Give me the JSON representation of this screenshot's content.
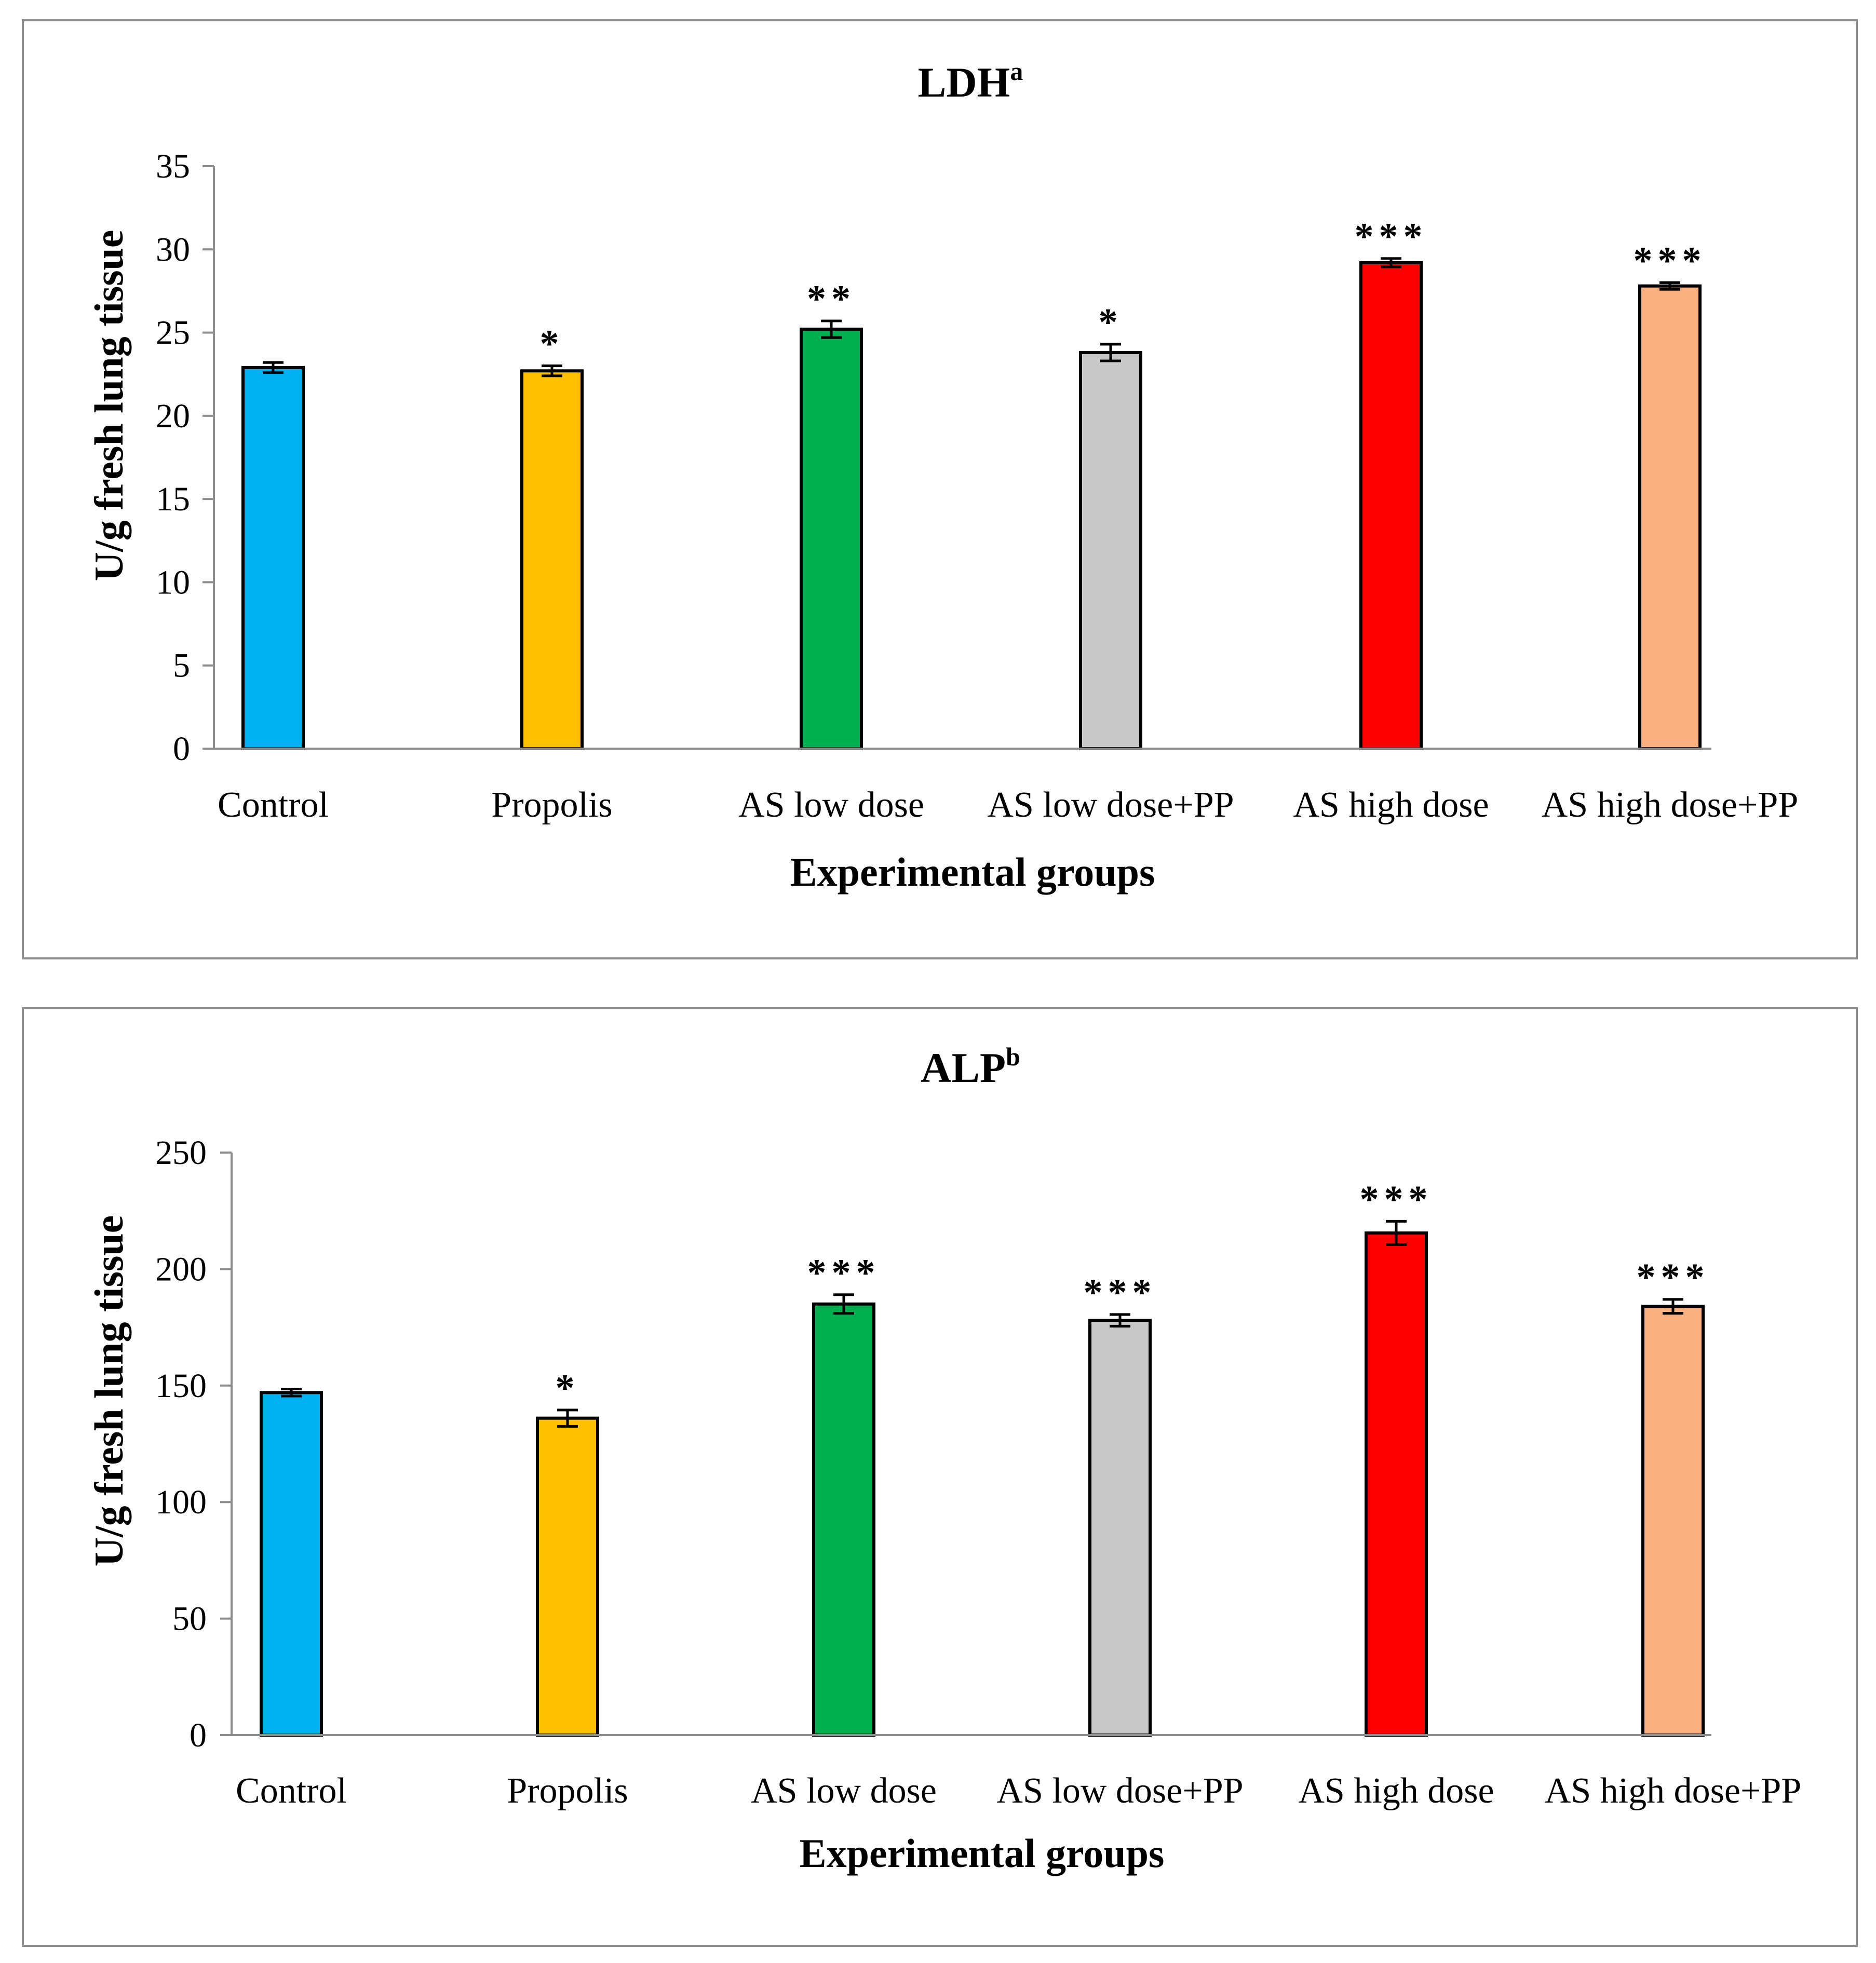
{
  "chart_data": [
    {
      "type": "bar",
      "title": "LDH",
      "title_superscript": "a",
      "xlabel": "Experimental groups",
      "ylabel": "U/g fresh lung tissue",
      "ylim": [
        0,
        35
      ],
      "yticks": [
        0,
        5,
        10,
        15,
        20,
        25,
        30,
        35
      ],
      "categories": [
        "Control",
        "Propolis",
        "AS low dose",
        "AS low dose+PP",
        "AS high dose",
        "AS high dose+PP"
      ],
      "values": [
        22.9,
        22.7,
        25.2,
        23.8,
        29.2,
        27.8
      ],
      "errors": [
        0.3,
        0.3,
        0.5,
        0.5,
        0.25,
        0.2
      ],
      "significance": [
        "",
        "*",
        "**",
        "*",
        "***",
        "***"
      ],
      "colors": [
        "#00b0f0",
        "#ffc000",
        "#00b050",
        "#c8c8c8",
        "#ff0000",
        "#fbb07f"
      ],
      "grid": false,
      "legend": "none"
    },
    {
      "type": "bar",
      "title": "ALP",
      "title_superscript": "b",
      "xlabel": "Experimental groups",
      "ylabel": "U/g fresh lung tissue",
      "ylim": [
        0,
        250
      ],
      "yticks": [
        0,
        50,
        100,
        150,
        200,
        250
      ],
      "categories": [
        "Control",
        "Propolis",
        "AS low dose",
        "AS low dose+PP",
        "AS high dose",
        "AS high dose+PP"
      ],
      "values": [
        147,
        136,
        185,
        178,
        215.5,
        184
      ],
      "errors": [
        1.5,
        3.5,
        4,
        2.5,
        5,
        3
      ],
      "significance": [
        "",
        "*",
        "***",
        "***",
        "***",
        "***"
      ],
      "colors": [
        "#00b0f0",
        "#ffc000",
        "#00b050",
        "#c8c8c8",
        "#ff0000",
        "#fbb07f"
      ],
      "grid": false,
      "legend": "none"
    }
  ]
}
